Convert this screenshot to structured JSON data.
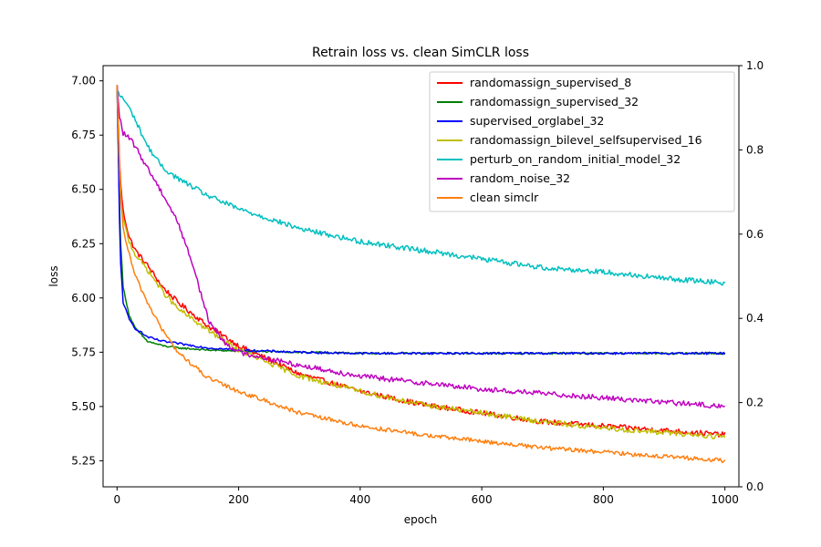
{
  "chart_data": {
    "type": "line",
    "title": "Retrain loss vs. clean SimCLR loss",
    "xlabel": "epoch",
    "ylabel": "loss",
    "xlim": [
      -23,
      1023
    ],
    "ylim": [
      5.13,
      7.07
    ],
    "y2lim": [
      0.0,
      1.0
    ],
    "xticks": [
      0,
      200,
      400,
      600,
      800,
      1000
    ],
    "yticks": [
      5.25,
      5.5,
      5.75,
      6.0,
      6.25,
      6.5,
      6.75,
      7.0
    ],
    "y2ticks": [
      0.0,
      0.2,
      0.4,
      0.6,
      0.8,
      1.0
    ],
    "xtick_labels": [
      "0",
      "200",
      "400",
      "600",
      "800",
      "1000"
    ],
    "ytick_labels": [
      "5.25",
      "5.50",
      "5.75",
      "6.00",
      "6.25",
      "6.50",
      "6.75",
      "7.00"
    ],
    "y2tick_labels": [
      "0.0",
      "0.2",
      "0.4",
      "0.6",
      "0.8",
      "1.0"
    ],
    "grid": false,
    "legend_position": "top-right",
    "series": [
      {
        "name": "randomassign_supervised_8",
        "color": "#ff0000",
        "noise": 0.012,
        "x": [
          0,
          5,
          10,
          20,
          30,
          50,
          75,
          100,
          150,
          200,
          300,
          400,
          500,
          600,
          700,
          800,
          900,
          1000
        ],
        "y": [
          6.98,
          6.55,
          6.4,
          6.28,
          6.22,
          6.15,
          6.05,
          5.98,
          5.87,
          5.78,
          5.65,
          5.57,
          5.51,
          5.47,
          5.43,
          5.41,
          5.39,
          5.37
        ]
      },
      {
        "name": "randomassign_supervised_32",
        "color": "#008000",
        "noise": 0.004,
        "x": [
          0,
          5,
          10,
          20,
          30,
          50,
          75,
          100,
          150,
          200,
          300,
          400,
          600,
          800,
          1000
        ],
        "y": [
          6.98,
          6.3,
          6.05,
          5.92,
          5.86,
          5.8,
          5.78,
          5.77,
          5.76,
          5.755,
          5.75,
          5.745,
          5.745,
          5.745,
          5.745
        ]
      },
      {
        "name": "supervised_orglabel_32",
        "color": "#0000ff",
        "noise": 0.005,
        "x": [
          0,
          5,
          10,
          20,
          30,
          50,
          75,
          100,
          150,
          200,
          300,
          400,
          600,
          800,
          1000
        ],
        "y": [
          6.98,
          6.2,
          5.98,
          5.9,
          5.86,
          5.82,
          5.8,
          5.79,
          5.77,
          5.76,
          5.75,
          5.745,
          5.745,
          5.745,
          5.745
        ]
      },
      {
        "name": "randomassign_bilevel_selfsupervised_16",
        "color": "#bfbf00",
        "noise": 0.012,
        "x": [
          0,
          5,
          10,
          20,
          30,
          50,
          75,
          100,
          150,
          200,
          300,
          400,
          500,
          600,
          700,
          800,
          900,
          1000
        ],
        "y": [
          6.98,
          6.5,
          6.36,
          6.26,
          6.2,
          6.13,
          6.03,
          5.95,
          5.85,
          5.76,
          5.64,
          5.57,
          5.51,
          5.47,
          5.43,
          5.4,
          5.38,
          5.36
        ]
      },
      {
        "name": "perturb_on_random_initial_model_32",
        "color": "#00bfbf",
        "noise": 0.012,
        "x": [
          0,
          5,
          10,
          25,
          50,
          75,
          100,
          150,
          200,
          300,
          400,
          500,
          600,
          700,
          800,
          900,
          1000
        ],
        "y": [
          6.95,
          6.93,
          6.92,
          6.85,
          6.7,
          6.6,
          6.55,
          6.47,
          6.41,
          6.32,
          6.26,
          6.22,
          6.18,
          6.14,
          6.12,
          6.09,
          6.07
        ]
      },
      {
        "name": "random_noise_32",
        "color": "#bf00bf",
        "noise": 0.012,
        "x": [
          0,
          3,
          10,
          25,
          50,
          75,
          100,
          125,
          150,
          175,
          200,
          250,
          300,
          400,
          500,
          600,
          700,
          800,
          900,
          1000
        ],
        "y": [
          6.98,
          6.85,
          6.76,
          6.72,
          6.6,
          6.48,
          6.35,
          6.15,
          5.9,
          5.8,
          5.75,
          5.72,
          5.69,
          5.64,
          5.61,
          5.58,
          5.56,
          5.54,
          5.52,
          5.5
        ]
      },
      {
        "name": "clean simclr",
        "color": "#ff7f0e",
        "noise": 0.01,
        "x": [
          0,
          5,
          10,
          20,
          30,
          50,
          75,
          100,
          150,
          200,
          300,
          400,
          500,
          600,
          700,
          800,
          900,
          1000
        ],
        "y": [
          6.98,
          6.5,
          6.32,
          6.2,
          6.1,
          5.98,
          5.85,
          5.75,
          5.63,
          5.57,
          5.47,
          5.41,
          5.37,
          5.34,
          5.31,
          5.29,
          5.27,
          5.25
        ]
      }
    ]
  }
}
